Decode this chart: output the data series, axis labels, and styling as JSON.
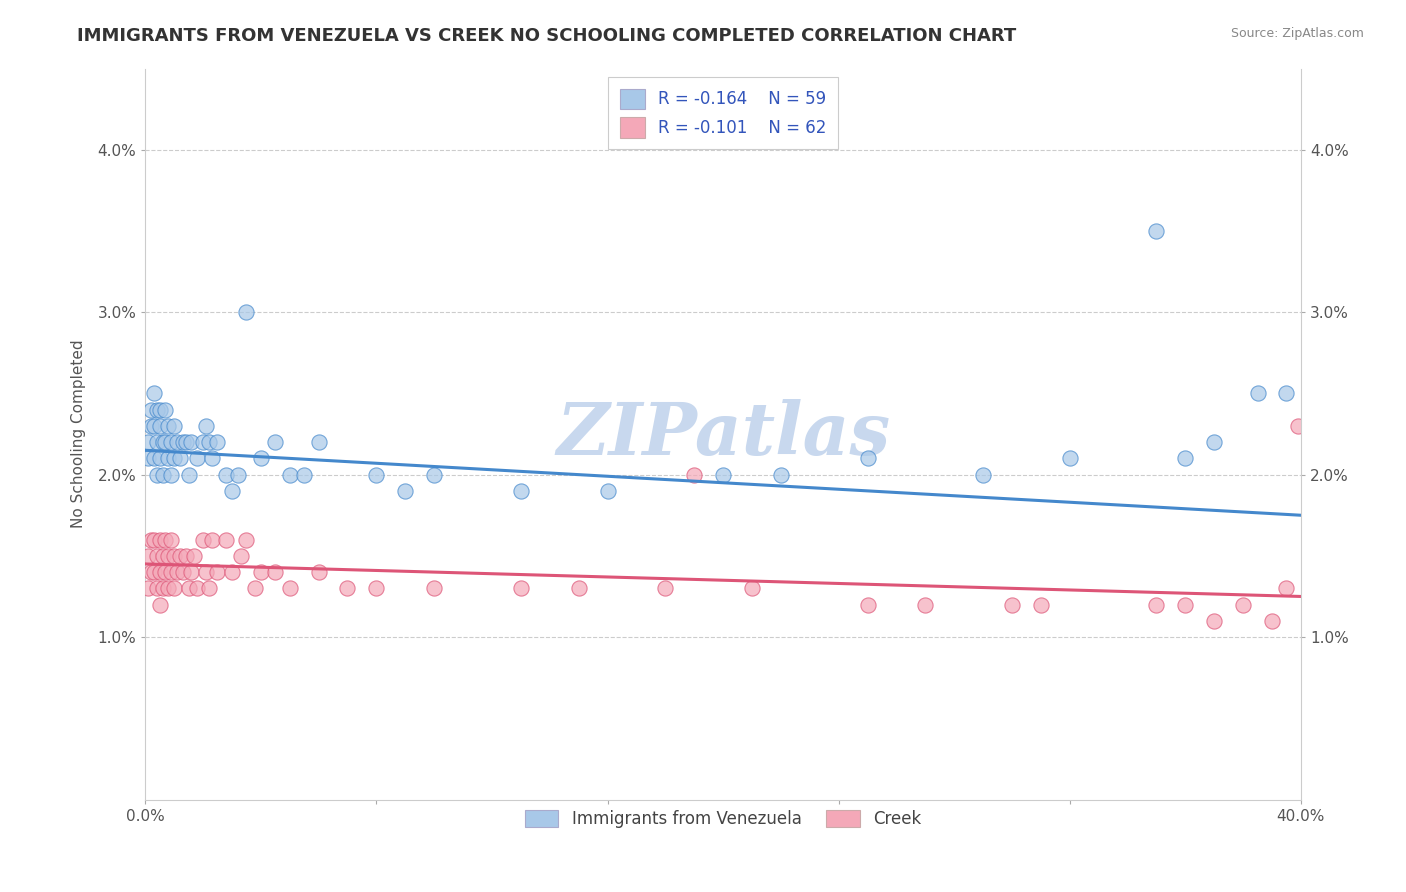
{
  "title": "IMMIGRANTS FROM VENEZUELA VS CREEK NO SCHOOLING COMPLETED CORRELATION CHART",
  "source": "Source: ZipAtlas.com",
  "ylabel": "No Schooling Completed",
  "xlim": [
    0.0,
    0.4
  ],
  "ylim": [
    0.0,
    0.045
  ],
  "yticks": [
    0.01,
    0.02,
    0.03,
    0.04
  ],
  "ytick_labels": [
    "1.0%",
    "2.0%",
    "3.0%",
    "4.0%"
  ],
  "xticks": [
    0.0,
    0.08,
    0.16,
    0.24,
    0.32,
    0.4
  ],
  "xtick_labels": [
    "0.0%",
    "",
    "",
    "",
    "",
    "40.0%"
  ],
  "legend_r1": "R = -0.164",
  "legend_n1": "N = 59",
  "legend_r2": "R = -0.101",
  "legend_n2": "N = 62",
  "blue_color": "#a8c8e8",
  "pink_color": "#f4a8b8",
  "blue_line_color": "#4488cc",
  "pink_line_color": "#dd5577",
  "watermark": "ZIPatlas",
  "blue_scatter_x": [
    0.001,
    0.001,
    0.002,
    0.002,
    0.003,
    0.003,
    0.003,
    0.004,
    0.004,
    0.004,
    0.005,
    0.005,
    0.005,
    0.006,
    0.006,
    0.007,
    0.007,
    0.008,
    0.008,
    0.009,
    0.009,
    0.01,
    0.01,
    0.011,
    0.012,
    0.013,
    0.014,
    0.015,
    0.016,
    0.018,
    0.02,
    0.021,
    0.022,
    0.023,
    0.025,
    0.028,
    0.03,
    0.032,
    0.035,
    0.04,
    0.045,
    0.05,
    0.055,
    0.06,
    0.08,
    0.09,
    0.1,
    0.13,
    0.16,
    0.2,
    0.22,
    0.25,
    0.29,
    0.32,
    0.35,
    0.36,
    0.37,
    0.385,
    0.395
  ],
  "blue_scatter_y": [
    0.022,
    0.021,
    0.024,
    0.023,
    0.025,
    0.023,
    0.021,
    0.024,
    0.022,
    0.02,
    0.024,
    0.023,
    0.021,
    0.022,
    0.02,
    0.024,
    0.022,
    0.023,
    0.021,
    0.022,
    0.02,
    0.023,
    0.021,
    0.022,
    0.021,
    0.022,
    0.022,
    0.02,
    0.022,
    0.021,
    0.022,
    0.023,
    0.022,
    0.021,
    0.022,
    0.02,
    0.019,
    0.02,
    0.03,
    0.021,
    0.022,
    0.02,
    0.02,
    0.022,
    0.02,
    0.019,
    0.02,
    0.019,
    0.019,
    0.02,
    0.02,
    0.021,
    0.02,
    0.021,
    0.035,
    0.021,
    0.022,
    0.025,
    0.025
  ],
  "pink_scatter_x": [
    0.001,
    0.001,
    0.002,
    0.002,
    0.003,
    0.003,
    0.004,
    0.004,
    0.005,
    0.005,
    0.005,
    0.006,
    0.006,
    0.007,
    0.007,
    0.008,
    0.008,
    0.009,
    0.009,
    0.01,
    0.01,
    0.011,
    0.012,
    0.013,
    0.014,
    0.015,
    0.016,
    0.017,
    0.018,
    0.02,
    0.021,
    0.022,
    0.023,
    0.025,
    0.028,
    0.03,
    0.033,
    0.035,
    0.038,
    0.04,
    0.045,
    0.05,
    0.06,
    0.07,
    0.08,
    0.1,
    0.13,
    0.15,
    0.18,
    0.19,
    0.21,
    0.25,
    0.27,
    0.3,
    0.31,
    0.35,
    0.36,
    0.37,
    0.38,
    0.39,
    0.395,
    0.399
  ],
  "pink_scatter_y": [
    0.015,
    0.013,
    0.016,
    0.014,
    0.016,
    0.014,
    0.015,
    0.013,
    0.016,
    0.014,
    0.012,
    0.015,
    0.013,
    0.016,
    0.014,
    0.015,
    0.013,
    0.016,
    0.014,
    0.015,
    0.013,
    0.014,
    0.015,
    0.014,
    0.015,
    0.013,
    0.014,
    0.015,
    0.013,
    0.016,
    0.014,
    0.013,
    0.016,
    0.014,
    0.016,
    0.014,
    0.015,
    0.016,
    0.013,
    0.014,
    0.014,
    0.013,
    0.014,
    0.013,
    0.013,
    0.013,
    0.013,
    0.013,
    0.013,
    0.02,
    0.013,
    0.012,
    0.012,
    0.012,
    0.012,
    0.012,
    0.012,
    0.011,
    0.012,
    0.011,
    0.013,
    0.023
  ],
  "blue_line_start_y": 0.0215,
  "blue_line_end_y": 0.0175,
  "pink_line_start_y": 0.0145,
  "pink_line_end_y": 0.0125,
  "title_fontsize": 13,
  "axis_label_fontsize": 11,
  "tick_fontsize": 11,
  "legend_fontsize": 12,
  "background_color": "#ffffff",
  "grid_color": "#cccccc",
  "watermark_color": "#c8d8ee",
  "watermark_fontsize": 52
}
